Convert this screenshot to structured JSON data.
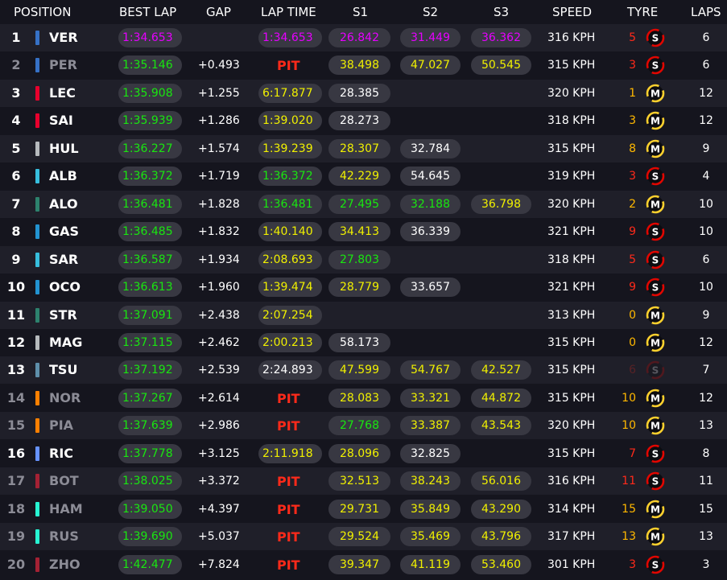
{
  "headers": {
    "position": "POSITION",
    "best_lap": "BEST LAP",
    "gap": "GAP",
    "lap_time": "LAP TIME",
    "s1": "S1",
    "s2": "S2",
    "s3": "S3",
    "speed": "SPEED",
    "tyre": "TYRE",
    "laps": "LAPS"
  },
  "colors": {
    "purple": "#e600ff",
    "green": "#19e610",
    "yellow": "#f0f000",
    "red": "#ff2a1a",
    "soft": "#e10600",
    "medium": "#ffd12e"
  },
  "rows": [
    {
      "pos": "1",
      "team_color": "#3671c6",
      "abbr": "VER",
      "best_lap": "1:34.653",
      "best_color": "purple",
      "gap": "",
      "lap_time": "1:34.653",
      "lap_color": "purple",
      "s1": "26.842",
      "s1_color": "purple",
      "s2": "31.449",
      "s2_color": "purple",
      "s3": "36.362",
      "s3_color": "purple",
      "speed": "316 KPH",
      "tyre_age": "5",
      "tyre": "S",
      "laps": "6",
      "faded": false
    },
    {
      "pos": "2",
      "team_color": "#3671c6",
      "abbr": "PER",
      "best_lap": "1:35.146",
      "best_color": "green",
      "gap": "+0.493",
      "lap_time": "PIT",
      "lap_color": "pit",
      "s1": "38.498",
      "s1_color": "yellow",
      "s2": "47.027",
      "s2_color": "yellow",
      "s3": "50.545",
      "s3_color": "yellow",
      "speed": "315 KPH",
      "tyre_age": "3",
      "tyre": "S",
      "laps": "6",
      "faded": true
    },
    {
      "pos": "3",
      "team_color": "#e8002d",
      "abbr": "LEC",
      "best_lap": "1:35.908",
      "best_color": "green",
      "gap": "+1.255",
      "lap_time": "6:17.877",
      "lap_color": "yellow",
      "s1": "28.385",
      "s1_color": "white",
      "s2": "",
      "s2_color": "white",
      "s3": "",
      "s3_color": "white",
      "speed": "320 KPH",
      "tyre_age": "1",
      "tyre": "M",
      "laps": "12",
      "faded": false
    },
    {
      "pos": "4",
      "team_color": "#e8002d",
      "abbr": "SAI",
      "best_lap": "1:35.939",
      "best_color": "green",
      "gap": "+1.286",
      "lap_time": "1:39.020",
      "lap_color": "yellow",
      "s1": "28.273",
      "s1_color": "white",
      "s2": "",
      "s2_color": "white",
      "s3": "",
      "s3_color": "white",
      "speed": "318 KPH",
      "tyre_age": "3",
      "tyre": "M",
      "laps": "12",
      "faded": false
    },
    {
      "pos": "5",
      "team_color": "#b6babd",
      "abbr": "HUL",
      "best_lap": "1:36.227",
      "best_color": "green",
      "gap": "+1.574",
      "lap_time": "1:39.239",
      "lap_color": "yellow",
      "s1": "28.307",
      "s1_color": "yellow",
      "s2": "32.784",
      "s2_color": "white",
      "s3": "",
      "s3_color": "white",
      "speed": "315 KPH",
      "tyre_age": "8",
      "tyre": "M",
      "laps": "9",
      "faded": false
    },
    {
      "pos": "6",
      "team_color": "#37bedd",
      "abbr": "ALB",
      "best_lap": "1:36.372",
      "best_color": "green",
      "gap": "+1.719",
      "lap_time": "1:36.372",
      "lap_color": "green",
      "s1": "42.229",
      "s1_color": "yellow",
      "s2": "54.645",
      "s2_color": "white",
      "s3": "",
      "s3_color": "white",
      "speed": "319 KPH",
      "tyre_age": "3",
      "tyre": "S",
      "laps": "4",
      "faded": false
    },
    {
      "pos": "7",
      "team_color": "#2d826d",
      "abbr": "ALO",
      "best_lap": "1:36.481",
      "best_color": "green",
      "gap": "+1.828",
      "lap_time": "1:36.481",
      "lap_color": "green",
      "s1": "27.495",
      "s1_color": "green",
      "s2": "32.188",
      "s2_color": "green",
      "s3": "36.798",
      "s3_color": "yellow",
      "speed": "320 KPH",
      "tyre_age": "2",
      "tyre": "M",
      "laps": "10",
      "faded": false
    },
    {
      "pos": "8",
      "team_color": "#2293d1",
      "abbr": "GAS",
      "best_lap": "1:36.485",
      "best_color": "green",
      "gap": "+1.832",
      "lap_time": "1:40.140",
      "lap_color": "yellow",
      "s1": "34.413",
      "s1_color": "yellow",
      "s2": "36.339",
      "s2_color": "white",
      "s3": "",
      "s3_color": "white",
      "speed": "321 KPH",
      "tyre_age": "9",
      "tyre": "S",
      "laps": "10",
      "faded": false
    },
    {
      "pos": "9",
      "team_color": "#37bedd",
      "abbr": "SAR",
      "best_lap": "1:36.587",
      "best_color": "green",
      "gap": "+1.934",
      "lap_time": "2:08.693",
      "lap_color": "yellow",
      "s1": "27.803",
      "s1_color": "green",
      "s2": "",
      "s2_color": "white",
      "s3": "",
      "s3_color": "white",
      "speed": "318 KPH",
      "tyre_age": "5",
      "tyre": "S",
      "laps": "6",
      "faded": false
    },
    {
      "pos": "10",
      "team_color": "#2293d1",
      "abbr": "OCO",
      "best_lap": "1:36.613",
      "best_color": "green",
      "gap": "+1.960",
      "lap_time": "1:39.474",
      "lap_color": "yellow",
      "s1": "28.779",
      "s1_color": "yellow",
      "s2": "33.657",
      "s2_color": "white",
      "s3": "",
      "s3_color": "white",
      "speed": "321 KPH",
      "tyre_age": "9",
      "tyre": "S",
      "laps": "10",
      "faded": false
    },
    {
      "pos": "11",
      "team_color": "#2d826d",
      "abbr": "STR",
      "best_lap": "1:37.091",
      "best_color": "green",
      "gap": "+2.438",
      "lap_time": "2:07.254",
      "lap_color": "yellow",
      "s1": "",
      "s1_color": "white",
      "s2": "",
      "s2_color": "white",
      "s3": "",
      "s3_color": "white",
      "speed": "313 KPH",
      "tyre_age": "0",
      "tyre": "M",
      "laps": "9",
      "faded": false
    },
    {
      "pos": "12",
      "team_color": "#b6babd",
      "abbr": "MAG",
      "best_lap": "1:37.115",
      "best_color": "green",
      "gap": "+2.462",
      "lap_time": "2:00.213",
      "lap_color": "yellow",
      "s1": "58.173",
      "s1_color": "white",
      "s2": "",
      "s2_color": "white",
      "s3": "",
      "s3_color": "white",
      "speed": "315 KPH",
      "tyre_age": "0",
      "tyre": "M",
      "laps": "12",
      "faded": false
    },
    {
      "pos": "13",
      "team_color": "#5e8faa",
      "abbr": "TSU",
      "best_lap": "1:37.192",
      "best_color": "green",
      "gap": "+2.539",
      "lap_time": "2:24.893",
      "lap_color": "white",
      "s1": "47.599",
      "s1_color": "yellow",
      "s2": "54.767",
      "s2_color": "yellow",
      "s3": "42.527",
      "s3_color": "yellow",
      "speed": "315 KPH",
      "tyre_age": "6",
      "tyre": "S",
      "laps": "7",
      "faded": false,
      "tyre_dim": true
    },
    {
      "pos": "14",
      "team_color": "#ff8000",
      "abbr": "NOR",
      "best_lap": "1:37.267",
      "best_color": "green",
      "gap": "+2.614",
      "lap_time": "PIT",
      "lap_color": "pit",
      "s1": "28.083",
      "s1_color": "yellow",
      "s2": "33.321",
      "s2_color": "yellow",
      "s3": "44.872",
      "s3_color": "yellow",
      "speed": "315 KPH",
      "tyre_age": "10",
      "tyre": "M",
      "laps": "12",
      "faded": true
    },
    {
      "pos": "15",
      "team_color": "#ff8000",
      "abbr": "PIA",
      "best_lap": "1:37.639",
      "best_color": "green",
      "gap": "+2.986",
      "lap_time": "PIT",
      "lap_color": "pit",
      "s1": "27.768",
      "s1_color": "green",
      "s2": "33.387",
      "s2_color": "yellow",
      "s3": "43.543",
      "s3_color": "yellow",
      "speed": "320 KPH",
      "tyre_age": "10",
      "tyre": "M",
      "laps": "13",
      "faded": true
    },
    {
      "pos": "16",
      "team_color": "#6692ff",
      "abbr": "RIC",
      "best_lap": "1:37.778",
      "best_color": "green",
      "gap": "+3.125",
      "lap_time": "2:11.918",
      "lap_color": "yellow",
      "s1": "28.096",
      "s1_color": "yellow",
      "s2": "32.825",
      "s2_color": "white",
      "s3": "",
      "s3_color": "white",
      "speed": "315 KPH",
      "tyre_age": "7",
      "tyre": "S",
      "laps": "8",
      "faded": false
    },
    {
      "pos": "17",
      "team_color": "#a42134",
      "abbr": "BOT",
      "best_lap": "1:38.025",
      "best_color": "green",
      "gap": "+3.372",
      "lap_time": "PIT",
      "lap_color": "pit",
      "s1": "32.513",
      "s1_color": "yellow",
      "s2": "38.243",
      "s2_color": "yellow",
      "s3": "56.016",
      "s3_color": "yellow",
      "speed": "316 KPH",
      "tyre_age": "11",
      "tyre": "S",
      "laps": "11",
      "faded": true
    },
    {
      "pos": "18",
      "team_color": "#27f4d2",
      "abbr": "HAM",
      "best_lap": "1:39.050",
      "best_color": "green",
      "gap": "+4.397",
      "lap_time": "PIT",
      "lap_color": "pit",
      "s1": "29.731",
      "s1_color": "yellow",
      "s2": "35.849",
      "s2_color": "yellow",
      "s3": "43.290",
      "s3_color": "yellow",
      "speed": "314 KPH",
      "tyre_age": "15",
      "tyre": "M",
      "laps": "15",
      "faded": true
    },
    {
      "pos": "19",
      "team_color": "#27f4d2",
      "abbr": "RUS",
      "best_lap": "1:39.690",
      "best_color": "green",
      "gap": "+5.037",
      "lap_time": "PIT",
      "lap_color": "pit",
      "s1": "29.524",
      "s1_color": "yellow",
      "s2": "35.469",
      "s2_color": "yellow",
      "s3": "43.796",
      "s3_color": "yellow",
      "speed": "317 KPH",
      "tyre_age": "13",
      "tyre": "M",
      "laps": "13",
      "faded": true
    },
    {
      "pos": "20",
      "team_color": "#a42134",
      "abbr": "ZHO",
      "best_lap": "1:42.477",
      "best_color": "green",
      "gap": "+7.824",
      "lap_time": "PIT",
      "lap_color": "pit",
      "s1": "39.347",
      "s1_color": "yellow",
      "s2": "41.119",
      "s2_color": "yellow",
      "s3": "53.460",
      "s3_color": "yellow",
      "speed": "301 KPH",
      "tyre_age": "3",
      "tyre": "S",
      "laps": "3",
      "faded": true
    }
  ]
}
